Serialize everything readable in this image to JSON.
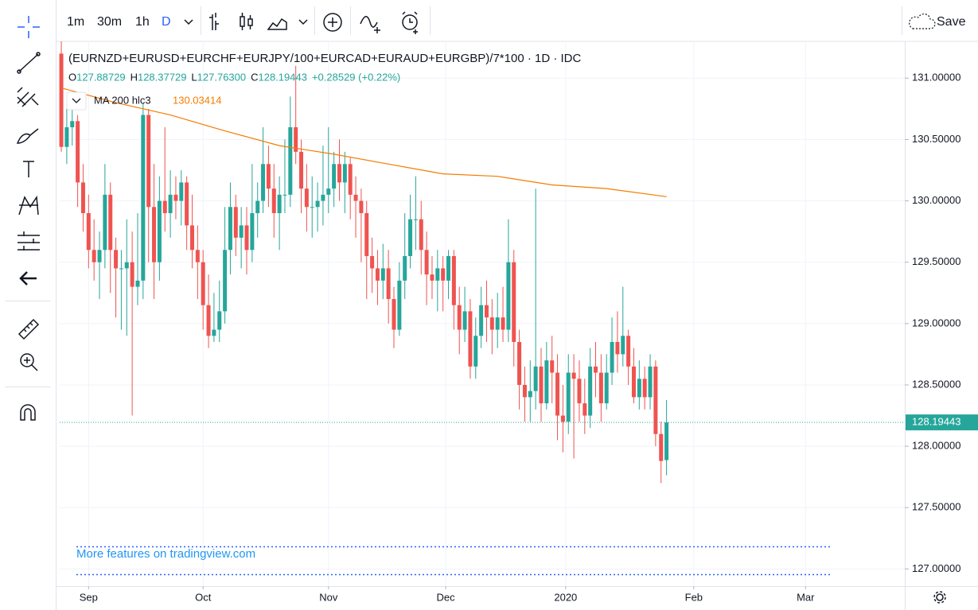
{
  "toolbar": {
    "intervals": [
      "1m",
      "30m",
      "1h",
      "D"
    ],
    "save": "Save"
  },
  "chart_data": {
    "type": "candlestick",
    "title": "(EURNZD+EURUSD+EURCHF+EURJPY/100+EURCAD+EURAUD+EURGBP)/7*100 · 1D · IDC",
    "ohlc_legend": [
      {
        "label": "O",
        "value": "127.88729"
      },
      {
        "label": "H",
        "value": "128.37729"
      },
      {
        "label": "L",
        "value": "127.76300"
      },
      {
        "label": "C",
        "value": "128.19443"
      }
    ],
    "change": "+0.28529 (+0.22%)",
    "ma": {
      "name": "MA 200 hlc3",
      "value_label": "130.03414",
      "color": "#f57c00",
      "x": [
        0,
        10,
        20,
        30,
        40,
        50,
        60,
        70,
        80,
        90,
        100,
        111
      ],
      "values": [
        130.92,
        130.8,
        130.7,
        130.57,
        130.45,
        130.38,
        130.3,
        130.22,
        130.2,
        130.13,
        130.1,
        130.03414
      ]
    },
    "last_price_label": "128.19443",
    "up_color": "#26a69a",
    "down_color": "#ef5350",
    "xlim": [
      -0.3,
      154.7
    ],
    "xticks": [
      {
        "value": 5,
        "label": "Sep"
      },
      {
        "value": 26,
        "label": "Oct"
      },
      {
        "value": 49,
        "label": "Nov"
      },
      {
        "value": 70.5,
        "label": "Dec"
      },
      {
        "value": 92.5,
        "label": "2020"
      },
      {
        "value": 116,
        "label": "Feb"
      },
      {
        "value": 136.5,
        "label": "Mar"
      }
    ],
    "ylim": [
      126.86,
      131.3
    ],
    "yticks": [
      {
        "value": 127,
        "label": "127.00000"
      },
      {
        "value": 127.5,
        "label": "127.50000"
      },
      {
        "value": 128,
        "label": "128.00000"
      },
      {
        "value": 128.5,
        "label": "128.50000"
      },
      {
        "value": 129,
        "label": "129.00000"
      },
      {
        "value": 129.5,
        "label": "129.50000"
      },
      {
        "value": 130,
        "label": "130.00000"
      },
      {
        "value": 130.5,
        "label": "130.50000"
      },
      {
        "value": 131,
        "label": "131.00000"
      }
    ],
    "grid": true,
    "promo": "More features on tradingview.com",
    "ohlc": [
      [
        131.2,
        131.3,
        130.4,
        130.44
      ],
      [
        130.44,
        130.75,
        130.3,
        130.6
      ],
      [
        130.6,
        130.8,
        130.45,
        130.65
      ],
      [
        130.65,
        130.7,
        129.95,
        130.15
      ],
      [
        130.15,
        130.3,
        129.75,
        129.9
      ],
      [
        129.9,
        130.05,
        129.45,
        129.6
      ],
      [
        129.6,
        129.85,
        129.35,
        129.5
      ],
      [
        129.5,
        129.75,
        129.2,
        129.6
      ],
      [
        129.6,
        130.3,
        129.45,
        130.05
      ],
      [
        130.05,
        130.15,
        129.25,
        129.6
      ],
      [
        129.6,
        129.7,
        129.05,
        129.45
      ],
      [
        129.45,
        129.6,
        128.95,
        129.45
      ],
      [
        129.45,
        129.85,
        128.9,
        129.5
      ],
      [
        129.5,
        129.75,
        128.25,
        129.3
      ],
      [
        129.3,
        129.9,
        129.15,
        129.35
      ],
      [
        129.35,
        130.8,
        129.2,
        130.7
      ],
      [
        130.7,
        130.75,
        129.5,
        129.95
      ],
      [
        129.95,
        130.3,
        129.2,
        129.5
      ],
      [
        129.5,
        130.2,
        129.35,
        130.0
      ],
      [
        130.0,
        130.6,
        129.75,
        129.9
      ],
      [
        129.9,
        130.25,
        129.7,
        130.05
      ],
      [
        130.05,
        130.2,
        129.85,
        130.0
      ],
      [
        130.0,
        130.25,
        129.8,
        130.15
      ],
      [
        130.15,
        130.2,
        129.6,
        129.8
      ],
      [
        129.8,
        130.05,
        129.45,
        129.6
      ],
      [
        129.6,
        129.8,
        129.2,
        129.5
      ],
      [
        129.5,
        129.6,
        128.95,
        129.15
      ],
      [
        129.15,
        129.4,
        128.8,
        128.9
      ],
      [
        128.9,
        129.25,
        128.85,
        128.95
      ],
      [
        128.95,
        129.35,
        128.85,
        129.1
      ],
      [
        129.1,
        129.95,
        129.0,
        129.6
      ],
      [
        129.6,
        130.15,
        129.4,
        129.95
      ],
      [
        129.95,
        130.05,
        129.55,
        129.7
      ],
      [
        129.7,
        129.95,
        129.45,
        129.8
      ],
      [
        129.8,
        129.95,
        129.4,
        129.6
      ],
      [
        129.6,
        130.3,
        129.5,
        129.9
      ],
      [
        129.9,
        130.15,
        129.7,
        130.0
      ],
      [
        130.0,
        130.6,
        129.9,
        130.3
      ],
      [
        130.3,
        130.45,
        129.95,
        130.1
      ],
      [
        130.1,
        130.3,
        129.7,
        129.9
      ],
      [
        129.9,
        130.2,
        129.6,
        130.05
      ],
      [
        130.05,
        130.5,
        129.9,
        130.05
      ],
      [
        130.05,
        130.85,
        129.95,
        130.6
      ],
      [
        130.6,
        131.1,
        130.3,
        130.4
      ],
      [
        130.4,
        130.5,
        129.9,
        130.1
      ],
      [
        130.1,
        130.3,
        129.75,
        129.95
      ],
      [
        129.95,
        130.2,
        129.7,
        129.95
      ],
      [
        129.95,
        130.15,
        129.75,
        130.0
      ],
      [
        130.0,
        130.45,
        129.8,
        130.05
      ],
      [
        130.05,
        130.6,
        129.9,
        130.1
      ],
      [
        130.1,
        130.4,
        129.95,
        130.3
      ],
      [
        130.3,
        130.5,
        130.0,
        130.15
      ],
      [
        130.15,
        130.4,
        129.9,
        130.3
      ],
      [
        130.3,
        130.35,
        129.85,
        130.05
      ],
      [
        130.05,
        130.2,
        129.7,
        130.0
      ],
      [
        130.0,
        130.1,
        129.5,
        129.9
      ],
      [
        129.9,
        130.0,
        129.2,
        129.55
      ],
      [
        129.55,
        129.7,
        129.25,
        129.45
      ],
      [
        129.45,
        129.6,
        129.15,
        129.35
      ],
      [
        129.35,
        129.65,
        129.2,
        129.45
      ],
      [
        129.45,
        129.6,
        129.0,
        129.2
      ],
      [
        129.2,
        129.3,
        128.8,
        128.95
      ],
      [
        128.95,
        129.5,
        128.9,
        129.35
      ],
      [
        129.35,
        129.9,
        129.2,
        129.55
      ],
      [
        129.55,
        130.05,
        129.45,
        129.85
      ],
      [
        129.85,
        130.2,
        129.6,
        129.85
      ],
      [
        129.85,
        130.0,
        129.4,
        129.6
      ],
      [
        129.6,
        129.75,
        129.15,
        129.4
      ],
      [
        129.4,
        129.55,
        129.2,
        129.35
      ],
      [
        129.35,
        129.6,
        129.1,
        129.45
      ],
      [
        129.45,
        129.55,
        129.1,
        129.35
      ],
      [
        129.35,
        129.6,
        129.2,
        129.55
      ],
      [
        129.55,
        129.6,
        128.95,
        129.15
      ],
      [
        129.15,
        129.3,
        128.75,
        128.95
      ],
      [
        128.95,
        129.3,
        128.85,
        129.1
      ],
      [
        129.1,
        129.2,
        128.55,
        128.65
      ],
      [
        128.65,
        129.05,
        128.55,
        128.9
      ],
      [
        128.9,
        129.3,
        128.8,
        129.15
      ],
      [
        129.15,
        129.35,
        128.85,
        129.05
      ],
      [
        129.05,
        129.2,
        128.75,
        128.95
      ],
      [
        128.95,
        129.25,
        128.8,
        129.05
      ],
      [
        129.05,
        129.3,
        128.85,
        128.95
      ],
      [
        128.95,
        129.85,
        128.85,
        129.5
      ],
      [
        129.5,
        129.6,
        128.65,
        128.85
      ],
      [
        128.85,
        128.95,
        128.3,
        128.5
      ],
      [
        128.5,
        128.65,
        128.2,
        128.4
      ],
      [
        128.4,
        128.7,
        128.2,
        128.45
      ],
      [
        128.45,
        130.1,
        128.3,
        128.65
      ],
      [
        128.65,
        128.8,
        128.2,
        128.35
      ],
      [
        128.35,
        128.85,
        128.3,
        128.7
      ],
      [
        128.7,
        128.9,
        128.35,
        128.6
      ],
      [
        128.6,
        128.75,
        128.05,
        128.25
      ],
      [
        128.25,
        128.5,
        127.95,
        128.2
      ],
      [
        128.2,
        128.75,
        128.1,
        128.6
      ],
      [
        128.6,
        128.75,
        127.9,
        128.55
      ],
      [
        128.55,
        128.7,
        128.2,
        128.35
      ],
      [
        128.35,
        128.55,
        128.1,
        128.25
      ],
      [
        128.25,
        128.8,
        128.15,
        128.65
      ],
      [
        128.65,
        128.85,
        128.4,
        128.6
      ],
      [
        128.6,
        128.75,
        128.2,
        128.35
      ],
      [
        128.35,
        128.75,
        128.3,
        128.6
      ],
      [
        128.6,
        129.05,
        128.5,
        128.85
      ],
      [
        128.85,
        129.1,
        128.6,
        128.75
      ],
      [
        128.75,
        129.3,
        128.65,
        128.9
      ],
      [
        128.9,
        128.95,
        128.5,
        128.65
      ],
      [
        128.65,
        128.8,
        128.35,
        128.4
      ],
      [
        128.4,
        128.7,
        128.3,
        128.55
      ],
      [
        128.55,
        128.65,
        128.3,
        128.4
      ],
      [
        128.4,
        128.75,
        128.3,
        128.65
      ],
      [
        128.65,
        128.7,
        128.0,
        128.1
      ],
      [
        128.1,
        128.2,
        127.7,
        127.88
      ],
      [
        127.88729,
        128.37729,
        127.763,
        128.19443
      ]
    ]
  }
}
